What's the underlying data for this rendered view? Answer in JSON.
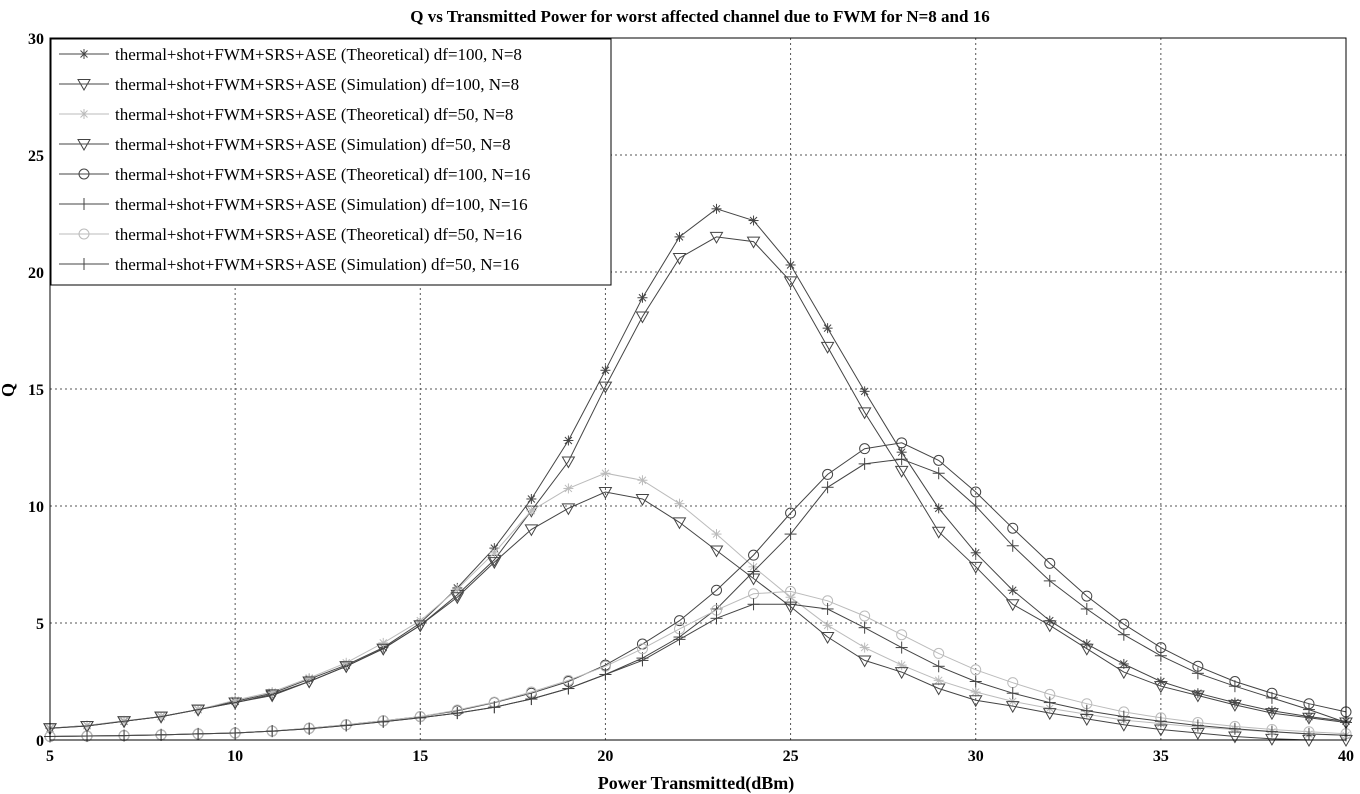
{
  "chart_data": {
    "type": "line",
    "title": "Q vs Transmitted Power for worst affected channel due to FWM for N=8 and 16",
    "xlabel": "Power Transmitted(dBm)",
    "ylabel": "Q",
    "xlim": [
      5,
      40
    ],
    "ylim": [
      0,
      30
    ],
    "xticks": [
      5,
      10,
      15,
      20,
      25,
      30,
      35,
      40
    ],
    "yticks": [
      0,
      5,
      10,
      15,
      20,
      25,
      30
    ],
    "grid": true,
    "legend_position": "top-left",
    "x": [
      5,
      6,
      7,
      8,
      9,
      10,
      11,
      12,
      13,
      14,
      15,
      16,
      17,
      18,
      19,
      20,
      21,
      22,
      23,
      24,
      25,
      26,
      27,
      28,
      29,
      30,
      31,
      32,
      33,
      34,
      35,
      36,
      37,
      38,
      39,
      40
    ],
    "series": [
      {
        "name": "thermal+shot+FWM+SRS+ASE (Theoretical) df=100, N=8",
        "color": "#444444",
        "marker": "star",
        "values": [
          0.5,
          0.62,
          0.8,
          1.0,
          1.3,
          1.65,
          2.0,
          2.6,
          3.2,
          3.95,
          5.0,
          6.5,
          8.2,
          10.3,
          12.8,
          15.8,
          18.9,
          21.5,
          22.7,
          22.2,
          20.3,
          17.6,
          14.9,
          12.3,
          9.9,
          8.0,
          6.4,
          5.1,
          4.1,
          3.25,
          2.5,
          2.0,
          1.6,
          1.25,
          1.0,
          0.8
        ]
      },
      {
        "name": "thermal+shot+FWM+SRS+ASE (Simulation) df=100, N=8",
        "color": "#444444",
        "marker": "triangle-down",
        "values": [
          0.5,
          0.6,
          0.8,
          1.0,
          1.3,
          1.6,
          1.9,
          2.5,
          3.15,
          3.9,
          4.9,
          6.2,
          7.7,
          9.8,
          11.9,
          15.1,
          18.1,
          20.6,
          21.5,
          21.3,
          19.6,
          16.8,
          14.0,
          11.5,
          8.9,
          7.4,
          5.8,
          4.9,
          3.9,
          2.9,
          2.3,
          1.9,
          1.5,
          1.15,
          0.95,
          0.75
        ]
      },
      {
        "name": "thermal+shot+FWM+SRS+ASE (Theoretical) df=50, N=8",
        "color": "#bbbbbb",
        "marker": "star",
        "values": [
          0.5,
          0.62,
          0.82,
          1.0,
          1.3,
          1.7,
          2.05,
          2.65,
          3.3,
          4.15,
          5.1,
          6.45,
          8.0,
          9.8,
          10.75,
          11.4,
          11.1,
          10.1,
          8.8,
          7.4,
          6.1,
          4.9,
          3.95,
          3.2,
          2.55,
          2.05,
          1.65,
          1.35,
          1.1,
          0.85,
          0.7,
          0.55,
          0.45,
          0.35,
          0.25,
          0.2
        ]
      },
      {
        "name": "thermal+shot+FWM+SRS+ASE (Simulation) df=50, N=8",
        "color": "#444444",
        "marker": "triangle-down",
        "values": [
          0.5,
          0.6,
          0.8,
          1.0,
          1.3,
          1.6,
          1.95,
          2.5,
          3.15,
          3.9,
          4.9,
          6.1,
          7.6,
          9.0,
          9.9,
          10.6,
          10.3,
          9.3,
          8.1,
          6.9,
          5.7,
          4.4,
          3.4,
          2.9,
          2.2,
          1.7,
          1.45,
          1.15,
          0.9,
          0.65,
          0.45,
          0.3,
          0.15,
          0.05,
          0.0,
          0.0
        ]
      },
      {
        "name": "thermal+shot+FWM+SRS+ASE (Theoretical) df=100, N=16",
        "color": "#444444",
        "marker": "circle",
        "values": [
          0.15,
          0.17,
          0.19,
          0.22,
          0.26,
          0.3,
          0.38,
          0.5,
          0.65,
          0.82,
          1.0,
          1.25,
          1.6,
          2.0,
          2.5,
          3.2,
          4.1,
          5.1,
          6.4,
          7.9,
          9.7,
          11.35,
          12.45,
          12.7,
          11.95,
          10.6,
          9.05,
          7.55,
          6.15,
          4.95,
          3.95,
          3.15,
          2.5,
          2.0,
          1.55,
          1.2
        ]
      },
      {
        "name": "thermal+shot+FWM+SRS+ASE (Simulation) df=100, N=16",
        "color": "#444444",
        "marker": "plus",
        "values": [
          0.15,
          0.17,
          0.19,
          0.22,
          0.26,
          0.3,
          0.38,
          0.48,
          0.62,
          0.78,
          0.95,
          1.15,
          1.4,
          1.75,
          2.2,
          2.8,
          3.5,
          4.4,
          5.6,
          7.2,
          8.8,
          10.8,
          11.8,
          12.0,
          11.4,
          10.0,
          8.3,
          6.8,
          5.6,
          4.5,
          3.6,
          2.85,
          2.3,
          1.8,
          1.3,
          0.75
        ]
      },
      {
        "name": "thermal+shot+FWM+SRS+ASE (Theoretical) df=50, N=16",
        "color": "#bbbbbb",
        "marker": "circle",
        "values": [
          0.15,
          0.17,
          0.19,
          0.22,
          0.26,
          0.3,
          0.38,
          0.5,
          0.65,
          0.82,
          1.0,
          1.28,
          1.62,
          2.05,
          2.55,
          3.15,
          3.9,
          4.75,
          5.55,
          6.25,
          6.35,
          5.95,
          5.3,
          4.5,
          3.7,
          3.0,
          2.45,
          1.95,
          1.55,
          1.2,
          0.95,
          0.75,
          0.58,
          0.45,
          0.35,
          0.27
        ]
      },
      {
        "name": "thermal+shot+FWM+SRS+ASE (Simulation) df=50, N=16",
        "color": "#444444",
        "marker": "plus",
        "values": [
          0.15,
          0.17,
          0.19,
          0.22,
          0.26,
          0.3,
          0.38,
          0.48,
          0.62,
          0.78,
          0.95,
          1.15,
          1.4,
          1.75,
          2.2,
          2.8,
          3.4,
          4.3,
          5.2,
          5.8,
          5.8,
          5.6,
          4.8,
          3.95,
          3.15,
          2.5,
          2.0,
          1.6,
          1.25,
          1.0,
          0.8,
          0.62,
          0.48,
          0.36,
          0.26,
          0.2
        ]
      }
    ]
  }
}
